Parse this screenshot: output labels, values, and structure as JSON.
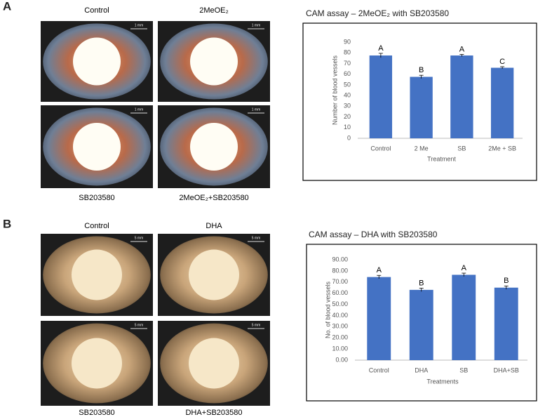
{
  "panels": [
    {
      "label": "A",
      "captions": [
        "Control",
        "2MeOE₂",
        "SB203580",
        "2MeOE₂+SB203580"
      ],
      "scale": "1 mm"
    },
    {
      "label": "B",
      "captions": [
        "Control",
        "DHA",
        "SB203580",
        "DHA+SB203580"
      ],
      "scale": "5 mm"
    }
  ],
  "chart_data": [
    {
      "type": "bar",
      "title": "CAM assay – 2MeOE₂ with SB203580",
      "y_label": "Number of blood vessels",
      "x_label": "Treatment",
      "categories": [
        "Control",
        "2 Me",
        "SB",
        "2Me + SB"
      ],
      "values": [
        77.5,
        57.5,
        77.5,
        66
      ],
      "errors": [
        2,
        1.5,
        1,
        1
      ],
      "letters": [
        "A",
        "B",
        "A",
        "C"
      ],
      "color": "#4472c4",
      "ylim": [
        0,
        90
      ],
      "yticks": [
        0,
        10,
        20,
        30,
        40,
        50,
        60,
        70,
        80,
        90
      ]
    },
    {
      "type": "bar",
      "title": "CAM assay – DHA with SB203580",
      "y_label": "No. of blood vessels",
      "x_label": "Treatments",
      "categories": [
        "Control",
        "DHA",
        "SB",
        "DHA+SB"
      ],
      "values": [
        74.5,
        63,
        76.5,
        65
      ],
      "errors": [
        1.5,
        1.5,
        1.5,
        1.5
      ],
      "letters": [
        "A",
        "B",
        "A",
        "B"
      ],
      "color": "#4472c4",
      "ylim": [
        0,
        90
      ],
      "yticks": [
        {
          "value": 0,
          "label": "0.00"
        },
        {
          "value": 10,
          "label": "10.00"
        },
        {
          "value": 20,
          "label": "20.00"
        },
        {
          "value": 30,
          "label": "30.00"
        },
        {
          "value": 40,
          "label": "40.00"
        },
        {
          "value": 50,
          "label": "50.00"
        },
        {
          "value": 60,
          "label": "60.00"
        },
        {
          "value": 70,
          "label": "70.00"
        },
        {
          "value": 80,
          "label": "80.00"
        },
        {
          "value": 90,
          "label": "90.00"
        }
      ]
    }
  ]
}
